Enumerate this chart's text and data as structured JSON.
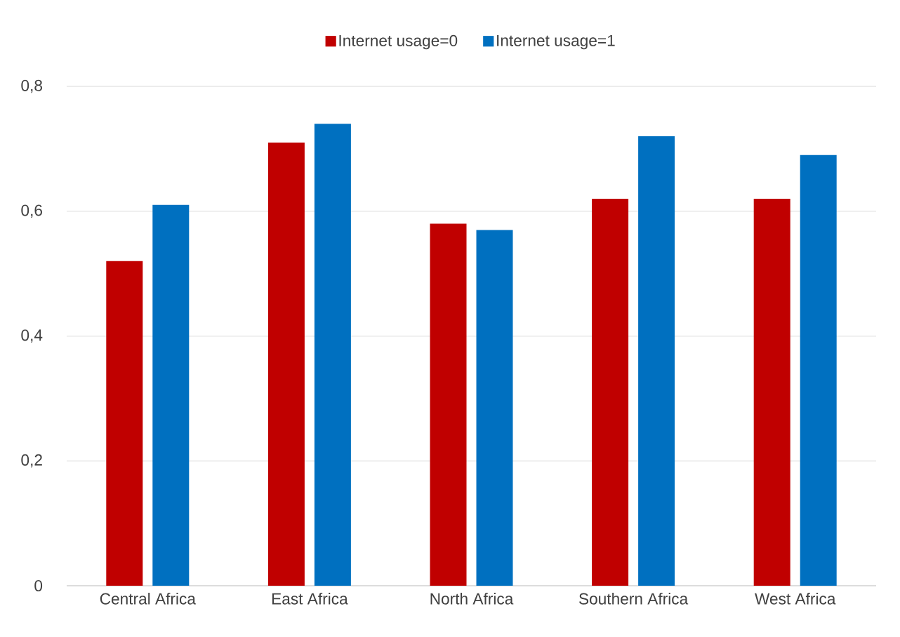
{
  "chart_data": {
    "type": "bar",
    "categories": [
      "Central Africa",
      "East Africa",
      "North Africa",
      "Southern Africa",
      "West Africa"
    ],
    "series": [
      {
        "name": "Internet usage=0",
        "color": "#c00000",
        "values": [
          0.52,
          0.71,
          0.58,
          0.62,
          0.62
        ]
      },
      {
        "name": "Internet usage=1",
        "color": "#0070c0",
        "values": [
          0.61,
          0.74,
          0.57,
          0.72,
          0.69
        ]
      }
    ],
    "ylim": [
      0,
      0.8
    ],
    "yticks": [
      0,
      {
        "value": 0.2,
        "label": "0,2"
      },
      {
        "value": 0.4,
        "label": "0,4"
      },
      {
        "value": 0.6,
        "label": "0,6"
      },
      {
        "value": 0.8,
        "label": "0,8"
      }
    ],
    "grid": "y",
    "legend": "top"
  }
}
